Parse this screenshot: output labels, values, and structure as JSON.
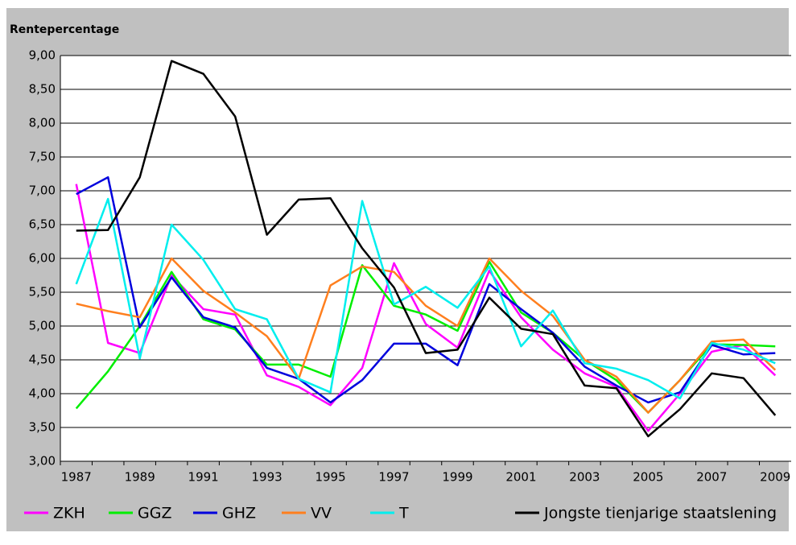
{
  "chart_data": {
    "type": "line",
    "title": "Rentepercentage",
    "categories": [
      "1987",
      null,
      "1989",
      null,
      "1991",
      null,
      "1993",
      null,
      "1995",
      null,
      "1997",
      null,
      "1999",
      null,
      "2001",
      null,
      "2003",
      null,
      "2005",
      null,
      "2007",
      null,
      "2009"
    ],
    "ylim": [
      3,
      9
    ],
    "yticks": [
      {
        "value": 3,
        "label": "3,00"
      },
      {
        "value": 3.5,
        "label": "3,50"
      },
      {
        "value": 4,
        "label": "4,00"
      },
      {
        "value": 4.5,
        "label": "4,50"
      },
      {
        "value": 5,
        "label": "5,00"
      },
      {
        "value": 5.5,
        "label": "5,50"
      },
      {
        "value": 6,
        "label": "6,00"
      },
      {
        "value": 6.5,
        "label": "6,50"
      },
      {
        "value": 7,
        "label": "7,00"
      },
      {
        "value": 7.5,
        "label": "7,50"
      },
      {
        "value": 8,
        "label": "8,00"
      },
      {
        "value": 8.5,
        "label": "8,50"
      },
      {
        "value": 9,
        "label": "9,00"
      }
    ],
    "grid": true,
    "legend": "bottom",
    "series": [
      {
        "name": "ZKH",
        "color": "#ff00ff",
        "values": [
          7.1,
          4.75,
          4.6,
          5.75,
          5.25,
          5.17,
          4.27,
          4.1,
          3.83,
          4.38,
          5.93,
          5.03,
          4.68,
          5.82,
          5.13,
          4.65,
          4.3,
          4.1,
          3.45,
          4.0,
          4.62,
          4.72,
          4.27
        ]
      },
      {
        "name": "GGZ",
        "color": "#00ee00",
        "values": [
          3.78,
          4.33,
          5.0,
          5.8,
          5.1,
          4.95,
          4.43,
          4.43,
          4.25,
          5.9,
          5.3,
          5.17,
          4.93,
          5.95,
          5.2,
          4.9,
          4.5,
          4.2,
          3.72,
          4.2,
          4.73,
          4.72,
          4.7
        ]
      },
      {
        "name": "GHZ",
        "color": "#0000dd",
        "values": [
          6.95,
          7.2,
          4.98,
          5.72,
          5.13,
          4.98,
          4.38,
          4.22,
          3.87,
          4.2,
          4.74,
          4.74,
          4.42,
          5.62,
          5.25,
          4.9,
          4.4,
          4.12,
          3.87,
          4.02,
          4.72,
          4.58,
          4.6
        ]
      },
      {
        "name": "VV",
        "color": "#ff7f1e",
        "values": [
          5.33,
          5.22,
          5.13,
          6.0,
          5.52,
          5.2,
          4.85,
          4.22,
          5.6,
          5.88,
          5.8,
          5.3,
          5.0,
          6.0,
          5.52,
          5.15,
          4.5,
          4.25,
          3.72,
          4.2,
          4.77,
          4.8,
          4.35
        ]
      },
      {
        "name": "T",
        "color": "#00eeee",
        "values": [
          5.62,
          6.88,
          4.52,
          6.5,
          5.98,
          5.25,
          5.1,
          4.22,
          4.02,
          6.85,
          5.32,
          5.58,
          5.27,
          5.88,
          4.7,
          5.23,
          4.45,
          4.37,
          4.2,
          3.93,
          4.75,
          4.65,
          4.45
        ]
      },
      {
        "name": "Jongste tienjarige staatslening",
        "color": "#000000",
        "values": [
          6.41,
          6.42,
          7.2,
          8.92,
          8.73,
          8.1,
          6.35,
          6.87,
          6.89,
          6.15,
          5.57,
          4.6,
          4.65,
          5.42,
          4.96,
          4.88,
          4.12,
          4.08,
          3.37,
          3.77,
          4.3,
          4.23,
          3.68
        ]
      }
    ]
  }
}
